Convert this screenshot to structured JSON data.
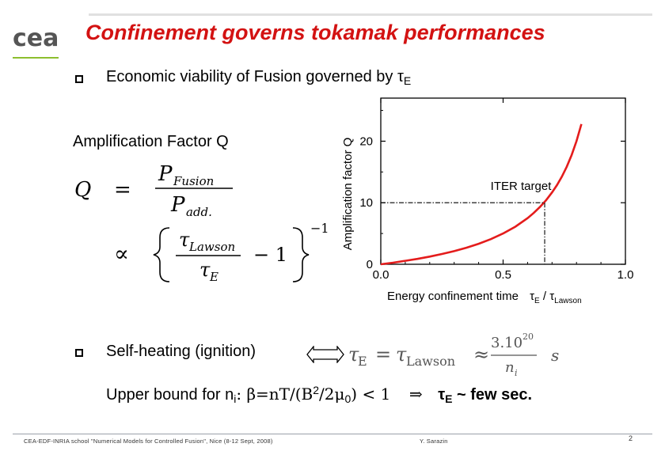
{
  "slide": {
    "title": "Confinement governs tokamak performances",
    "logo_text": "cea",
    "bullet1": {
      "text": "Economic viability of Fusion governed by τ",
      "sub": "E"
    },
    "amplification_label": "Amplification Factor Q",
    "formula": {
      "lhs": "Q",
      "eq": "=",
      "num": "P",
      "num_sub": "Fusion",
      "den": "P",
      "den_sub": "add.",
      "prop": "∝",
      "tau_num": "τ",
      "tau_num_sub": "Lawson",
      "tau_den": "τ",
      "tau_den_sub": "E",
      "minus_one": "− 1",
      "exp": "−1"
    },
    "bullet2": {
      "text": "Self-heating (ignition)",
      "symbol": "⇔"
    },
    "tau_formula": {
      "tau": "τ",
      "tau_sub": "E",
      "eq": "=",
      "tau2": "τ",
      "tau2_sub": "Lawson",
      "approx": "≈",
      "num": "3.10",
      "num_sup": "20",
      "den": "n",
      "den_sub": "i",
      "unit": "s"
    },
    "line4": {
      "pre": "Upper bound for n",
      "pre_sub": "i",
      "expr": ": β=nT/(B",
      "b_sup": "2",
      "expr2": "/2μ",
      "mu_sub": "0",
      "expr3": ") < 1",
      "implies": "⇒",
      "tau": "τ",
      "tau_sub": "E",
      "tail": " ~ few sec."
    },
    "footer": {
      "left": "CEA-EDF-INRIA school \"Numerical Models for Controlled Fusion\", Nice (8-12 Sept, 2008)",
      "middle": "Y. Sarazin",
      "page": "2"
    },
    "colors": {
      "title": "#d31212",
      "curve": "#e41c1c",
      "logo_line": "#8dbf2e"
    }
  },
  "chart_data": {
    "type": "line",
    "xlabel": "Energy confinement time",
    "xlabel_ratio": {
      "num": "τ",
      "num_sub": "E",
      "slash": " / ",
      "den": "τ",
      "den_sub": "Lawson"
    },
    "ylabel": "Amplification factor Q",
    "x_ticks": [
      "0.0",
      "0.5",
      "1.0"
    ],
    "y_ticks": [
      "0",
      "10",
      "20"
    ],
    "xlim": [
      0,
      1
    ],
    "ylim": [
      0,
      27
    ],
    "series": [
      {
        "x": [
          0.0,
          0.05,
          0.1,
          0.15,
          0.2,
          0.25,
          0.3,
          0.35,
          0.4,
          0.45,
          0.5,
          0.55,
          0.6,
          0.625,
          0.65,
          0.675,
          0.7,
          0.72,
          0.74,
          0.76,
          0.78,
          0.8,
          0.82
        ],
        "y": [
          0.0,
          0.26,
          0.56,
          0.88,
          1.25,
          1.67,
          2.14,
          2.69,
          3.33,
          4.09,
          5.0,
          6.11,
          7.5,
          8.33,
          9.29,
          10.38,
          11.67,
          12.86,
          14.23,
          15.83,
          17.73,
          20.0,
          22.78
        ]
      }
    ],
    "annotation": {
      "text": "ITER target",
      "x": 0.67,
      "y": 10
    },
    "grid": false
  }
}
